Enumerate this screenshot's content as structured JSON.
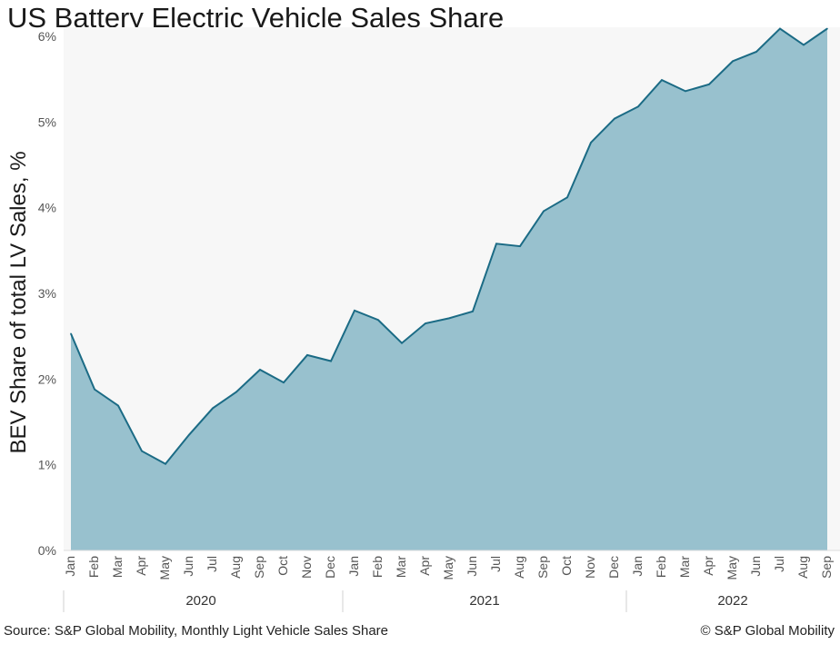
{
  "chart_data": {
    "type": "area",
    "title": "US Battery Electric Vehicle Sales Share",
    "ylabel": "BEV Share of total LV Sales, %",
    "xlabel": "",
    "ylim": [
      0,
      6
    ],
    "yticks": [
      0,
      1,
      2,
      3,
      4,
      5,
      6
    ],
    "ytick_labels": [
      "0%",
      "1%",
      "2%",
      "3%",
      "4%",
      "5%",
      "6%"
    ],
    "categories": [
      "Jan",
      "Feb",
      "Mar",
      "Apr",
      "May",
      "Jun",
      "Jul",
      "Aug",
      "Sep",
      "Oct",
      "Nov",
      "Dec",
      "Jan",
      "Feb",
      "Mar",
      "Apr",
      "May",
      "Jun",
      "Jul",
      "Aug",
      "Sep",
      "Oct",
      "Nov",
      "Dec",
      "Jan",
      "Feb",
      "Mar",
      "Apr",
      "May",
      "Jun",
      "Jul",
      "Aug",
      "Sep"
    ],
    "years": [
      {
        "label": "2020",
        "months": 12
      },
      {
        "label": "2021",
        "months": 12
      },
      {
        "label": "2022",
        "months": 9
      }
    ],
    "values": [
      2.53,
      1.88,
      1.69,
      1.16,
      1.01,
      1.35,
      1.66,
      1.85,
      2.11,
      1.96,
      2.28,
      2.21,
      2.8,
      2.69,
      2.42,
      2.65,
      2.71,
      2.79,
      3.58,
      3.55,
      3.96,
      4.12,
      4.76,
      5.04,
      5.18,
      5.49,
      5.36,
      5.44,
      5.71,
      5.82,
      6.09,
      5.9,
      6.09
    ],
    "grid": false,
    "fill_color": "#98c1ce",
    "line_color": "#1b6b85",
    "plot_background": "#f7f7f7"
  },
  "footer": {
    "source": "Source: S&P Global Mobility, Monthly Light Vehicle Sales Share",
    "copyright": "© S&P Global Mobility"
  }
}
